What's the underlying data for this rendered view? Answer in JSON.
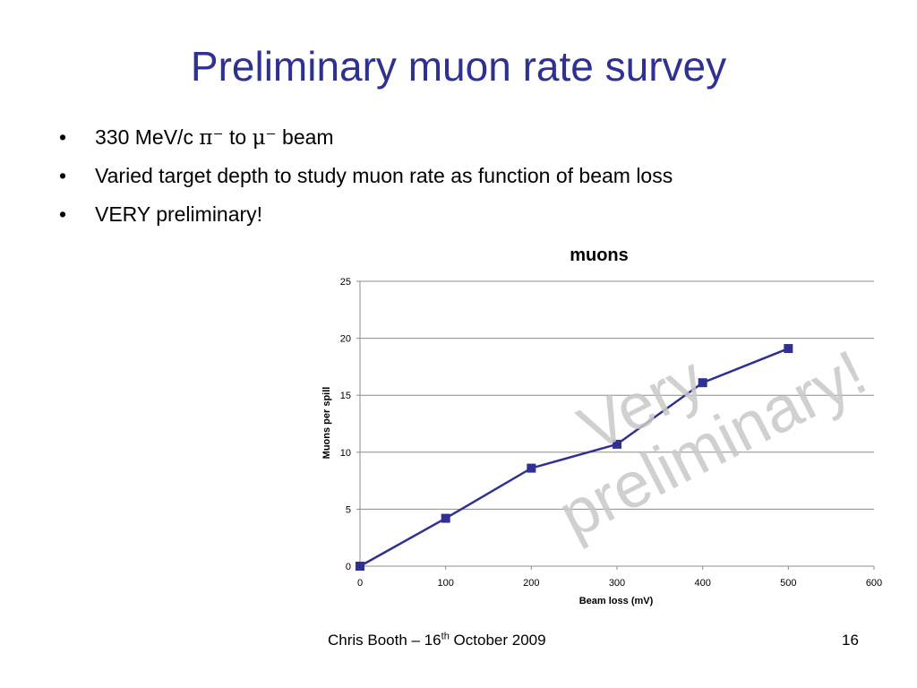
{
  "slide": {
    "title": "Preliminary muon rate survey",
    "bullets": [
      {
        "marker": "•",
        "parts": {
          "a": "330 MeV/c ",
          "pi": "π⁻",
          "b": " to ",
          "mu": "μ⁻",
          "c": " beam"
        }
      },
      {
        "marker": "•",
        "text": "Varied target depth to study muon rate as function of beam loss"
      },
      {
        "marker": "•",
        "text": "VERY preliminary!"
      }
    ],
    "footer": {
      "author_prefix": "Chris Booth – 16",
      "author_sup": "th",
      "author_suffix": " October  2009",
      "page_number": "16"
    }
  },
  "chart_data": {
    "type": "line",
    "title": "muons",
    "xlabel": "Beam loss (mV)",
    "ylabel": "Muons per spill",
    "xlim": [
      0,
      600
    ],
    "ylim": [
      0,
      25
    ],
    "xticks": [
      "0",
      "100",
      "200",
      "300",
      "400",
      "500",
      "600"
    ],
    "yticks": [
      "0",
      "5",
      "10",
      "15",
      "20",
      "25"
    ],
    "grid": "horizontal",
    "series": [
      {
        "x": [
          0,
          100,
          200,
          300,
          400,
          500
        ],
        "y": [
          0,
          4.2,
          8.6,
          10.7,
          16.1,
          19.1
        ],
        "color": "#2e3192",
        "marker": "square"
      }
    ],
    "watermark": [
      "Very",
      "preliminary!"
    ],
    "watermark_color": "#c8c8c8"
  }
}
